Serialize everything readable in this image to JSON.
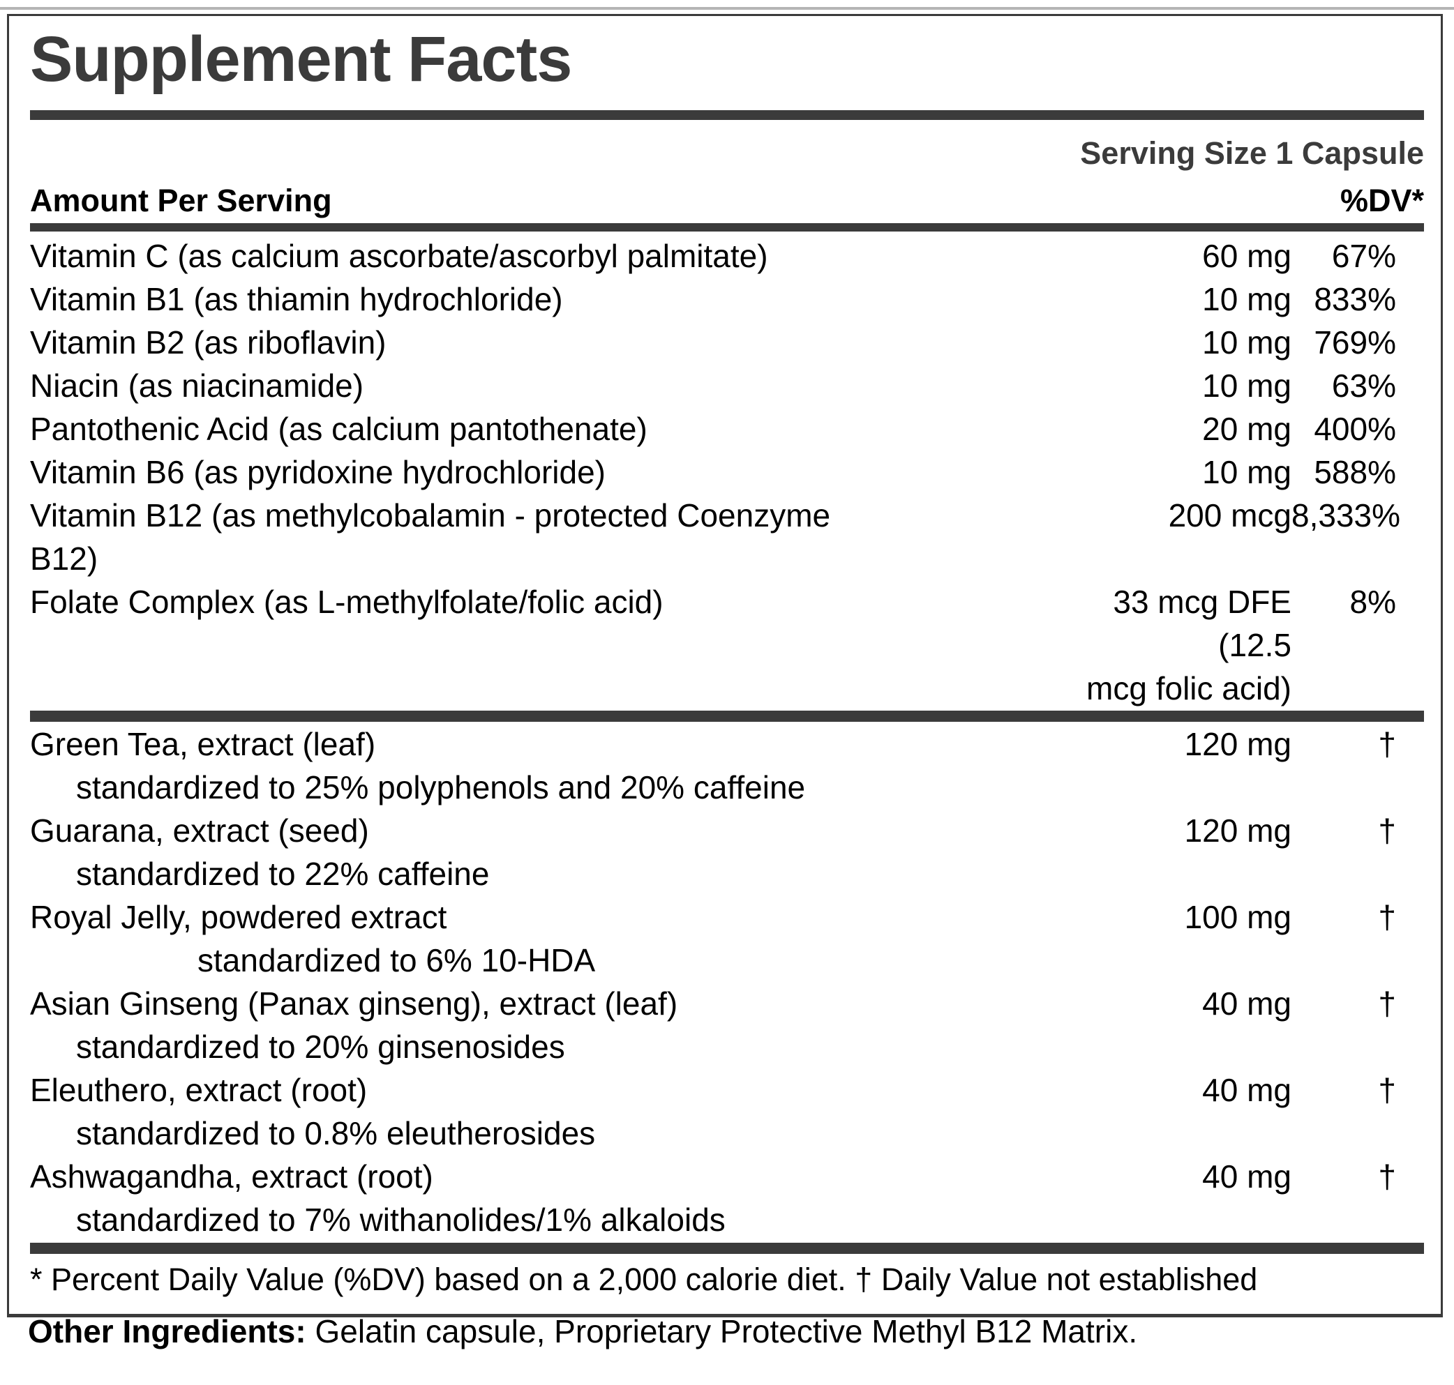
{
  "colors": {
    "accent": "#3b3b3b",
    "text": "#000000",
    "top_rule": "#b5b5b5",
    "background": "#ffffff"
  },
  "panel": {
    "title": "Supplement Facts",
    "serving_size": "Serving Size 1 Capsule",
    "amount_header": "Amount Per Serving",
    "dv_header": "%DV*",
    "footnote": "* Percent Daily Value (%DV) based on a 2,000 calorie diet. † Daily Value not established",
    "sections": [
      {
        "rows": [
          {
            "name": "Vitamin C (as calcium ascorbate/ascorbyl palmitate)",
            "amount": "60 mg",
            "dv": "67%"
          },
          {
            "name": "Vitamin B1 (as thiamin hydrochloride)",
            "amount": "10 mg",
            "dv": "833%"
          },
          {
            "name": "Vitamin B2 (as riboflavin)",
            "amount": "10 mg",
            "dv": "769%"
          },
          {
            "name": "Niacin (as niacinamide)",
            "amount": "10 mg",
            "dv": "63%"
          },
          {
            "name": "Pantothenic Acid (as calcium pantothenate)",
            "amount": "20 mg",
            "dv": "400%"
          },
          {
            "name": "Vitamin B6 (as pyridoxine hydrochloride)",
            "amount": "10 mg",
            "dv": "588%"
          },
          {
            "name": "Vitamin B12 (as methylcobalamin - protected Coenzyme B12)",
            "name_lines": [
              "Vitamin B12 (as methylcobalamin - protected Coenzyme",
              "B12)"
            ],
            "amount": "200 mcg",
            "dv": "8,333%"
          },
          {
            "name": "Folate Complex (as L-methylfolate/folic acid)",
            "amount": "33 mcg DFE (12.5 mcg folic acid)",
            "amount_lines": [
              "33 mcg DFE (12.5",
              "mcg folic acid)"
            ],
            "dv": "8%"
          }
        ]
      },
      {
        "rows": [
          {
            "name": "Green Tea, extract (leaf)",
            "sub": "standardized to 25% polyphenols and 20% caffeine",
            "amount": "120 mg",
            "dv": "†"
          },
          {
            "name": "Guarana, extract (seed)",
            "sub": "standardized to 22% caffeine",
            "amount": "120 mg",
            "dv": "†"
          },
          {
            "name": "Royal Jelly, powdered extract",
            "sub": "standardized to 6% 10-HDA",
            "sub_indent": "wide",
            "amount": "100 mg",
            "dv": "†"
          },
          {
            "name": "Asian Ginseng (Panax ginseng), extract (leaf)",
            "sub": "standardized to 20% ginsenosides",
            "amount": "40 mg",
            "dv": "†"
          },
          {
            "name": "Eleuthero, extract (root)",
            "sub": "standardized to 0.8% eleutherosides",
            "amount": "40 mg",
            "dv": "†"
          },
          {
            "name": "Ashwagandha, extract (root)",
            "sub": "standardized to 7% withanolides/1% alkaloids",
            "amount": "40 mg",
            "dv": "†"
          }
        ]
      }
    ]
  },
  "other_ingredients": {
    "label": "Other Ingredients:",
    "text": "Gelatin capsule, Proprietary Protective Methyl B12 Matrix."
  }
}
